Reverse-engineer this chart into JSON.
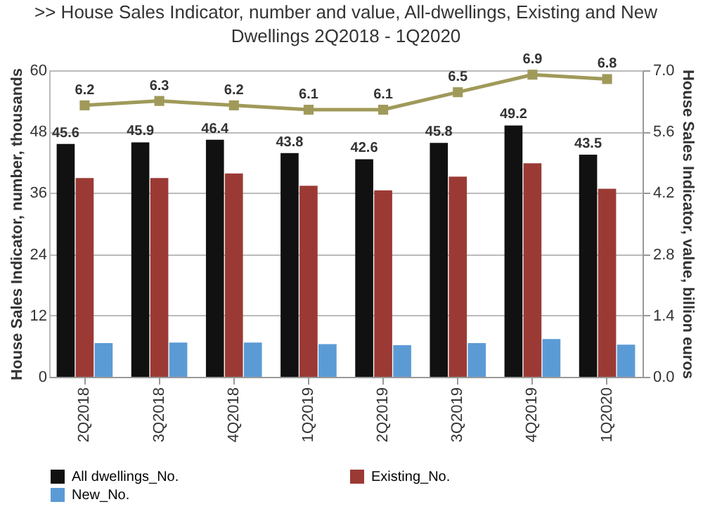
{
  "chart_data": {
    "type": "bar",
    "title": ">> House Sales Indicator, number and value, All-dwellings, Existing and New\nDwellings 2Q2018 - 1Q2020",
    "categories": [
      "2Q2018",
      "3Q2018",
      "4Q2018",
      "1Q2019",
      "2Q2019",
      "3Q2019",
      "4Q2019",
      "1Q2020"
    ],
    "ylabel": "House Sales Indicator, number, thousands",
    "y2label": "House Sales Indicator, value, billion euros",
    "series": [
      {
        "name": "All dwellings_No.",
        "color": "#111111",
        "values": [
          45.6,
          45.9,
          46.4,
          43.8,
          42.6,
          45.8,
          49.2,
          43.5
        ],
        "value_labels": [
          "45.6",
          "45.9",
          "46.4",
          "43.8",
          "42.6",
          "45.8",
          "49.2",
          "43.5"
        ]
      },
      {
        "name": "Existing_No.",
        "color": "#9b3a35",
        "values": [
          38.9,
          38.9,
          39.8,
          37.4,
          36.5,
          39.2,
          41.8,
          36.8
        ]
      },
      {
        "name": "New_No.",
        "color": "#5b9bd5",
        "values": [
          6.6,
          6.7,
          6.7,
          6.4,
          6.2,
          6.6,
          7.4,
          6.3
        ]
      },
      {
        "type": "line",
        "axis": "y2",
        "color": "#a09a5a",
        "marker": "square",
        "values": [
          6.2,
          6.3,
          6.2,
          6.1,
          6.1,
          6.5,
          6.9,
          6.8
        ],
        "value_labels": [
          "6.2",
          "6.3",
          "6.2",
          "6.1",
          "6.1",
          "6.5",
          "6.9",
          "6.8"
        ]
      }
    ],
    "ylim": [
      0,
      60
    ],
    "yticks": [
      0,
      12,
      24,
      36,
      48,
      60
    ],
    "y2lim": [
      0,
      7.0
    ],
    "y2ticks": [
      {
        "value": 0,
        "label": "0.0"
      },
      1.4,
      2.8,
      4.2,
      5.6,
      {
        "value": 7,
        "label": "7.0"
      }
    ],
    "grid": "y",
    "legend": "bottom"
  }
}
